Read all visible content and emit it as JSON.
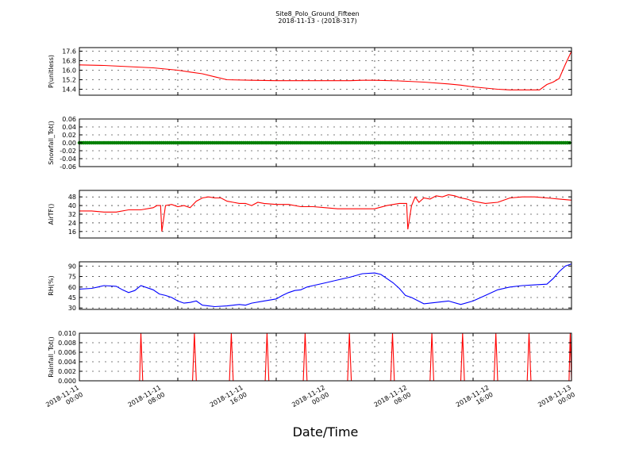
{
  "figure": {
    "title": "Site8_Polo_Ground_Fifteen",
    "subtitle": "2018-11-13 - (2018-317)",
    "xlabel": "Date/Time"
  },
  "chart_data": [
    {
      "type": "line",
      "ylabel": "P(unitless)",
      "color": "#ff0000",
      "ylim": [
        13.9,
        17.9
      ],
      "yticks": [
        "14.4",
        "15.2",
        "16.0",
        "16.8",
        "17.6"
      ],
      "grid": true,
      "x": [
        0,
        2,
        4,
        6,
        7,
        8,
        9,
        10,
        11,
        12,
        14,
        16,
        18,
        20,
        22,
        23,
        24,
        26,
        28,
        30,
        31,
        32,
        33,
        34,
        35,
        36,
        36.5,
        37,
        37.4,
        38,
        38.5,
        39,
        39.5,
        40
      ],
      "values": [
        16.45,
        16.4,
        16.3,
        16.2,
        16.1,
        16.0,
        15.85,
        15.7,
        15.45,
        15.2,
        15.15,
        15.12,
        15.12,
        15.12,
        15.12,
        15.15,
        15.15,
        15.1,
        15.0,
        14.85,
        14.75,
        14.6,
        14.5,
        14.4,
        14.35,
        14.35,
        14.35,
        14.35,
        14.35,
        14.8,
        15.0,
        15.3,
        16.5,
        17.6
      ]
    },
    {
      "type": "scatter",
      "ylabel": "Snowfall_Tot()",
      "color": "#008000",
      "ylim": [
        -0.06,
        0.06
      ],
      "yticks": [
        "-0.06",
        "-0.04",
        "-0.02",
        "0.00",
        "0.02",
        "0.04",
        "0.06"
      ],
      "grid": true,
      "x_start": 0,
      "x_end": 40,
      "x_step": 0.1667,
      "constant_value": 0.0
    },
    {
      "type": "line",
      "ylabel": "AirTF()",
      "color": "#ff0000",
      "ylim": [
        10,
        54
      ],
      "yticks": [
        "16",
        "24",
        "32",
        "40",
        "48"
      ],
      "grid": true,
      "x": [
        0,
        1,
        2,
        3,
        4,
        5,
        6,
        6.3,
        6.6,
        6.7,
        7,
        7.5,
        8,
        8.5,
        9,
        9.5,
        10,
        10.5,
        11,
        11.5,
        12,
        12.5,
        13,
        13.5,
        14,
        14.5,
        15,
        16,
        17,
        18,
        19,
        20,
        21,
        22,
        23,
        24,
        25,
        26,
        26.3,
        26.6,
        26.7,
        27,
        27.3,
        27.6,
        28,
        28.5,
        29,
        29.5,
        30,
        30.5,
        31,
        31.5,
        32,
        33,
        34,
        35,
        36,
        37,
        38,
        39,
        40
      ],
      "values": [
        35,
        35,
        34,
        34,
        36,
        36,
        38,
        40,
        40,
        16,
        40,
        41,
        39,
        40,
        38,
        44,
        47,
        48,
        47,
        47,
        44,
        43,
        42,
        42,
        40,
        43,
        42,
        41,
        41,
        39,
        39,
        38,
        37,
        37,
        37,
        37,
        40,
        42,
        42,
        42,
        18,
        40,
        48,
        43,
        47,
        46,
        49,
        48,
        50,
        49,
        47,
        46,
        44,
        42,
        43,
        47,
        48,
        48,
        47,
        46,
        45
      ]
    },
    {
      "type": "line",
      "ylabel": "RH(%)",
      "color": "#0000ff",
      "ylim": [
        28,
        96
      ],
      "yticks": [
        "30",
        "45",
        "60",
        "75",
        "90"
      ],
      "grid": true,
      "x": [
        0,
        1,
        1.5,
        2,
        3,
        3.5,
        4,
        4.5,
        5,
        6,
        6.5,
        7,
        7.5,
        8,
        8.5,
        9,
        9.5,
        10,
        10.5,
        11,
        12,
        13,
        13.5,
        14,
        15,
        16,
        16.5,
        17,
        17.5,
        18,
        18.5,
        19,
        20,
        21,
        22,
        23,
        24,
        24.5,
        25,
        25.5,
        26,
        26.5,
        27,
        28,
        29,
        30,
        31,
        32,
        33,
        34,
        35,
        36,
        37,
        38,
        38.5,
        39,
        39.5,
        40
      ],
      "values": [
        57,
        58,
        60,
        62,
        61,
        56,
        52,
        55,
        62,
        56,
        50,
        48,
        45,
        40,
        37,
        38,
        40,
        34,
        33,
        32,
        33,
        35,
        34,
        37,
        40,
        43,
        48,
        52,
        55,
        56,
        60,
        62,
        66,
        70,
        74,
        79,
        80,
        78,
        72,
        66,
        58,
        48,
        45,
        36,
        38,
        40,
        35,
        40,
        48,
        56,
        60,
        62,
        63,
        64,
        72,
        82,
        90,
        93
      ]
    },
    {
      "type": "line",
      "ylabel": "Rainfall_Tot()",
      "color": "#ff0000",
      "ylim": [
        0.0,
        0.01
      ],
      "yticks": [
        "0.000",
        "0.002",
        "0.004",
        "0.006",
        "0.008",
        "0.010"
      ],
      "grid": true,
      "x": [
        0,
        4.9,
        5.0,
        5.15,
        9.2,
        9.35,
        9.5,
        12.2,
        12.35,
        12.5,
        15.1,
        15.25,
        15.4,
        18.2,
        18.35,
        18.5,
        21.8,
        21.95,
        22.1,
        25.3,
        25.45,
        25.6,
        28.5,
        28.65,
        28.8,
        31.0,
        31.15,
        31.3,
        33.7,
        33.85,
        34.0,
        36.4,
        36.55,
        36.7,
        39.8,
        39.9,
        40
      ],
      "values": [
        0,
        0,
        0.01,
        0,
        0,
        0.01,
        0,
        0,
        0.01,
        0,
        0,
        0.01,
        0,
        0,
        0.01,
        0,
        0,
        0.01,
        0,
        0,
        0.01,
        0,
        0,
        0.01,
        0,
        0,
        0.01,
        0,
        0,
        0.01,
        0,
        0,
        0.01,
        0,
        0,
        0.01,
        0
      ]
    }
  ],
  "x_axis": {
    "range_hours": [
      0,
      40
    ],
    "ticks": [
      {
        "value": 0,
        "line1": "2018-11-11",
        "line2": "00:00"
      },
      {
        "value": 8,
        "line1": "2018-11-11",
        "line2": "08:00"
      },
      {
        "value": 16,
        "line1": "2018-11-11",
        "line2": "16:00"
      },
      {
        "value": 24,
        "line1": "2018-11-12",
        "line2": "00:00"
      },
      {
        "value": 32,
        "line1": "2018-11-12",
        "line2": "08:00"
      },
      {
        "value": 40,
        "line1": "2018-11-12",
        "line2": "16:00"
      },
      {
        "value": 48,
        "line1": "2018-11-13",
        "line2": "00:00"
      }
    ]
  }
}
